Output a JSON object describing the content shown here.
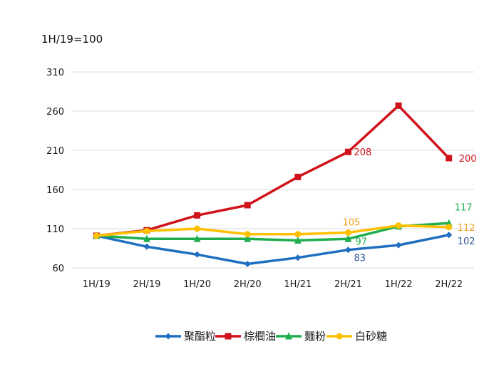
{
  "chart_data": {
    "type": "line",
    "title": "",
    "unit_label": "1H/19=100",
    "xlabel": "",
    "ylabel": "",
    "categories": [
      "1H/19",
      "2H/19",
      "1H/20",
      "2H/20",
      "1H/21",
      "2H/21",
      "1H/22",
      "2H/22"
    ],
    "yticks": [
      60,
      110,
      160,
      210,
      260,
      310
    ],
    "ylim": [
      60,
      310
    ],
    "grid": "horizontal",
    "legend_position": "bottom",
    "series": [
      {
        "name": "聚酯粒",
        "color": "#1f6fc1",
        "marker": "diamond",
        "values": [
          101,
          87,
          77,
          65,
          73,
          83,
          89,
          102
        ]
      },
      {
        "name": "棕櫚油",
        "color": "#d0121b",
        "marker": "square",
        "values": [
          101,
          108,
          127,
          140,
          176,
          208,
          267,
          200
        ]
      },
      {
        "name": "麵粉",
        "color": "#1fae4e",
        "marker": "triangle",
        "values": [
          101,
          97,
          97,
          97,
          95,
          97,
          113,
          117
        ]
      },
      {
        "name": "白砂糖",
        "color": "#ffc000",
        "marker": "circle",
        "values": [
          101,
          107,
          110,
          103,
          103,
          105,
          114,
          112
        ]
      }
    ],
    "annotations": [
      {
        "series": 1,
        "index": 5,
        "text": "208"
      },
      {
        "series": 1,
        "index": 7,
        "text": "200"
      },
      {
        "series": 3,
        "index": 5,
        "text": "105"
      },
      {
        "series": 2,
        "index": 5,
        "text": "97"
      },
      {
        "series": 0,
        "index": 5,
        "text": "83"
      },
      {
        "series": 2,
        "index": 7,
        "text": "117"
      },
      {
        "series": 3,
        "index": 7,
        "text": "112"
      },
      {
        "series": 0,
        "index": 7,
        "text": "102"
      }
    ]
  }
}
